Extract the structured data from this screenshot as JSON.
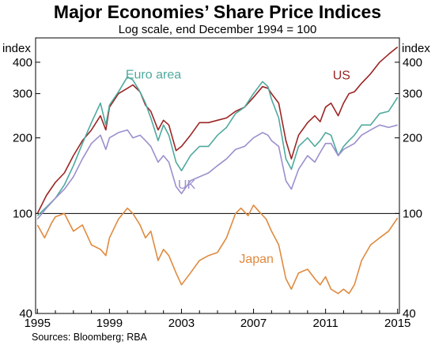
{
  "chart_data": {
    "type": "line",
    "title": "Major Economies’ Share Price Indices",
    "subtitle": "Log scale, end December 1994 = 100",
    "ylabel_left": "index",
    "ylabel_right": "index",
    "yscale": "log",
    "ylim": [
      40,
      500
    ],
    "xlim": [
      1994.9,
      2015.1
    ],
    "yticks": [
      40,
      100,
      200,
      300,
      400
    ],
    "xticks": [
      1995,
      1999,
      2003,
      2007,
      2011,
      2015
    ],
    "reference_line": 100,
    "source": "Sources:   Bloomberg; RBA",
    "series": [
      {
        "name": "US",
        "color": "#9b2424",
        "label_pos": [
          2011.4,
          355
        ],
        "points": [
          [
            1995,
            100
          ],
          [
            1995.5,
            118
          ],
          [
            1996,
            133
          ],
          [
            1996.5,
            145
          ],
          [
            1997,
            170
          ],
          [
            1997.5,
            195
          ],
          [
            1998,
            215
          ],
          [
            1998.5,
            245
          ],
          [
            1998.8,
            215
          ],
          [
            1999,
            265
          ],
          [
            1999.5,
            300
          ],
          [
            2000,
            315
          ],
          [
            2000.3,
            325
          ],
          [
            2000.7,
            305
          ],
          [
            2001,
            270
          ],
          [
            2001.3,
            255
          ],
          [
            2001.7,
            215
          ],
          [
            2002,
            235
          ],
          [
            2002.3,
            225
          ],
          [
            2002.7,
            178
          ],
          [
            2003,
            185
          ],
          [
            2003.5,
            205
          ],
          [
            2004,
            230
          ],
          [
            2004.5,
            230
          ],
          [
            2005,
            235
          ],
          [
            2005.5,
            240
          ],
          [
            2006,
            255
          ],
          [
            2006.5,
            265
          ],
          [
            2007,
            290
          ],
          [
            2007.5,
            320
          ],
          [
            2007.8,
            315
          ],
          [
            2008,
            300
          ],
          [
            2008.4,
            275
          ],
          [
            2008.8,
            195
          ],
          [
            2009.1,
            165
          ],
          [
            2009.5,
            205
          ],
          [
            2010,
            230
          ],
          [
            2010.4,
            245
          ],
          [
            2010.7,
            232
          ],
          [
            2011,
            265
          ],
          [
            2011.3,
            275
          ],
          [
            2011.7,
            245
          ],
          [
            2012,
            275
          ],
          [
            2012.3,
            300
          ],
          [
            2012.6,
            305
          ],
          [
            2013,
            330
          ],
          [
            2013.5,
            360
          ],
          [
            2014,
            400
          ],
          [
            2014.5,
            430
          ],
          [
            2015,
            460
          ]
        ]
      },
      {
        "name": "Euro area",
        "color": "#4fa99e",
        "label_pos": [
          1999.9,
          357
        ],
        "points": [
          [
            1995,
            98
          ],
          [
            1995.5,
            106
          ],
          [
            1996,
            115
          ],
          [
            1996.5,
            130
          ],
          [
            1997,
            155
          ],
          [
            1997.5,
            190
          ],
          [
            1998,
            230
          ],
          [
            1998.5,
            275
          ],
          [
            1998.8,
            225
          ],
          [
            1999,
            270
          ],
          [
            1999.5,
            305
          ],
          [
            2000,
            350
          ],
          [
            2000.3,
            340
          ],
          [
            2000.7,
            305
          ],
          [
            2001,
            275
          ],
          [
            2001.3,
            240
          ],
          [
            2001.7,
            195
          ],
          [
            2002,
            225
          ],
          [
            2002.3,
            205
          ],
          [
            2002.7,
            160
          ],
          [
            2003,
            148
          ],
          [
            2003.5,
            170
          ],
          [
            2004,
            185
          ],
          [
            2004.5,
            185
          ],
          [
            2005,
            205
          ],
          [
            2005.5,
            220
          ],
          [
            2006,
            250
          ],
          [
            2006.5,
            265
          ],
          [
            2007,
            300
          ],
          [
            2007.5,
            335
          ],
          [
            2007.8,
            320
          ],
          [
            2008,
            285
          ],
          [
            2008.4,
            240
          ],
          [
            2008.8,
            165
          ],
          [
            2009.1,
            150
          ],
          [
            2009.5,
            185
          ],
          [
            2010,
            200
          ],
          [
            2010.4,
            185
          ],
          [
            2010.7,
            195
          ],
          [
            2011,
            210
          ],
          [
            2011.3,
            205
          ],
          [
            2011.7,
            170
          ],
          [
            2012,
            185
          ],
          [
            2012.3,
            195
          ],
          [
            2012.6,
            205
          ],
          [
            2013,
            225
          ],
          [
            2013.5,
            225
          ],
          [
            2014,
            250
          ],
          [
            2014.5,
            255
          ],
          [
            2015,
            290
          ]
        ]
      },
      {
        "name": "UK",
        "color": "#9b8fcd",
        "label_pos": [
          2002.8,
          130
        ],
        "points": [
          [
            1995,
            95
          ],
          [
            1995.5,
            105
          ],
          [
            1996,
            115
          ],
          [
            1996.5,
            125
          ],
          [
            1997,
            140
          ],
          [
            1997.5,
            165
          ],
          [
            1998,
            190
          ],
          [
            1998.5,
            205
          ],
          [
            1998.8,
            180
          ],
          [
            1999,
            200
          ],
          [
            1999.5,
            210
          ],
          [
            2000,
            215
          ],
          [
            2000.3,
            200
          ],
          [
            2000.7,
            205
          ],
          [
            2001,
            195
          ],
          [
            2001.3,
            185
          ],
          [
            2001.7,
            160
          ],
          [
            2002,
            170
          ],
          [
            2002.3,
            160
          ],
          [
            2002.7,
            128
          ],
          [
            2003,
            120
          ],
          [
            2003.5,
            135
          ],
          [
            2004,
            140
          ],
          [
            2004.5,
            145
          ],
          [
            2005,
            155
          ],
          [
            2005.5,
            165
          ],
          [
            2006,
            180
          ],
          [
            2006.5,
            185
          ],
          [
            2007,
            200
          ],
          [
            2007.5,
            210
          ],
          [
            2007.8,
            205
          ],
          [
            2008,
            195
          ],
          [
            2008.4,
            185
          ],
          [
            2008.8,
            135
          ],
          [
            2009.1,
            125
          ],
          [
            2009.5,
            150
          ],
          [
            2010,
            170
          ],
          [
            2010.4,
            160
          ],
          [
            2010.7,
            175
          ],
          [
            2011,
            190
          ],
          [
            2011.3,
            190
          ],
          [
            2011.7,
            170
          ],
          [
            2012,
            180
          ],
          [
            2012.3,
            185
          ],
          [
            2012.6,
            190
          ],
          [
            2013,
            205
          ],
          [
            2013.5,
            215
          ],
          [
            2014,
            225
          ],
          [
            2014.5,
            220
          ],
          [
            2015,
            225
          ]
        ]
      },
      {
        "name": "Japan",
        "color": "#e08a3e",
        "label_pos": [
          2006.2,
          66
        ],
        "points": [
          [
            1995,
            90
          ],
          [
            1995.4,
            80
          ],
          [
            1995.8,
            92
          ],
          [
            1996,
            97
          ],
          [
            1996.5,
            100
          ],
          [
            1997,
            85
          ],
          [
            1997.5,
            90
          ],
          [
            1998,
            75
          ],
          [
            1998.5,
            72
          ],
          [
            1998.8,
            68
          ],
          [
            1999,
            80
          ],
          [
            1999.5,
            95
          ],
          [
            2000,
            105
          ],
          [
            2000.3,
            100
          ],
          [
            2000.7,
            90
          ],
          [
            2001,
            80
          ],
          [
            2001.3,
            85
          ],
          [
            2001.7,
            65
          ],
          [
            2002,
            72
          ],
          [
            2002.3,
            68
          ],
          [
            2002.7,
            58
          ],
          [
            2003,
            52
          ],
          [
            2003.5,
            58
          ],
          [
            2004,
            65
          ],
          [
            2004.5,
            68
          ],
          [
            2005,
            70
          ],
          [
            2005.5,
            80
          ],
          [
            2006,
            100
          ],
          [
            2006.3,
            105
          ],
          [
            2006.7,
            98
          ],
          [
            2007,
            108
          ],
          [
            2007.3,
            102
          ],
          [
            2007.7,
            95
          ],
          [
            2008,
            85
          ],
          [
            2008.4,
            75
          ],
          [
            2008.8,
            55
          ],
          [
            2009.1,
            50
          ],
          [
            2009.5,
            58
          ],
          [
            2010,
            60
          ],
          [
            2010.4,
            55
          ],
          [
            2010.7,
            52
          ],
          [
            2011,
            56
          ],
          [
            2011.3,
            50
          ],
          [
            2011.7,
            48
          ],
          [
            2012,
            50
          ],
          [
            2012.3,
            48
          ],
          [
            2012.6,
            52
          ],
          [
            2013,
            65
          ],
          [
            2013.5,
            75
          ],
          [
            2014,
            80
          ],
          [
            2014.5,
            85
          ],
          [
            2015,
            96
          ]
        ]
      }
    ]
  }
}
